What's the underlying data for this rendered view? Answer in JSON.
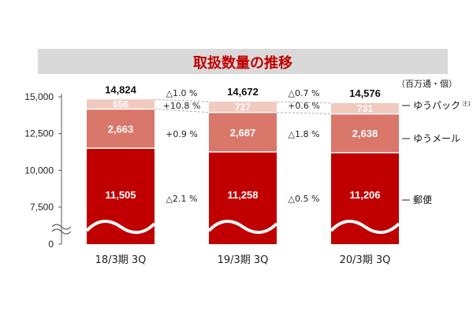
{
  "title": "取扱数量の推移",
  "unit_label": "（百万通・個）",
  "colors": {
    "title": "#c00000",
    "title_band": "#d9d9d9",
    "yubin": "#c00000",
    "yumail": "#d9776a",
    "yupack": "#f0c9bf",
    "connector": "#b0b0b0"
  },
  "chart_data": {
    "type": "bar",
    "stacked": true,
    "categories": [
      "18/3期 3Q",
      "19/3期 3Q",
      "20/3期 3Q"
    ],
    "series": [
      {
        "name": "郵便",
        "values": [
          11505,
          11258,
          11206
        ],
        "value_labels": [
          "11,505",
          "11,258",
          "11,206"
        ]
      },
      {
        "name": "ゆうメール",
        "values": [
          2663,
          2687,
          2638
        ],
        "value_labels": [
          "2,663",
          "2,687",
          "2,638"
        ]
      },
      {
        "name": "ゆうパック",
        "name_note": "注1",
        "values": [
          656,
          727,
          731
        ],
        "value_labels": [
          "656",
          "727",
          "731"
        ]
      }
    ],
    "totals": [
      "14,824",
      "14,672",
      "14,576"
    ],
    "total_changes": [
      "△1.0 %",
      "△0.7 %"
    ],
    "yupack_changes": [
      "+10.8 %",
      "+0.6 %"
    ],
    "yumail_changes": [
      "+0.9 %",
      "△1.8 %"
    ],
    "yubin_changes": [
      "△2.1 %",
      "△0.5 %"
    ],
    "yticks": [
      0,
      7500,
      10000,
      12500,
      15000
    ],
    "ytick_labels": [
      "0",
      "7,500",
      "10,000",
      "12,500",
      "15,000"
    ],
    "axis_break": true
  }
}
